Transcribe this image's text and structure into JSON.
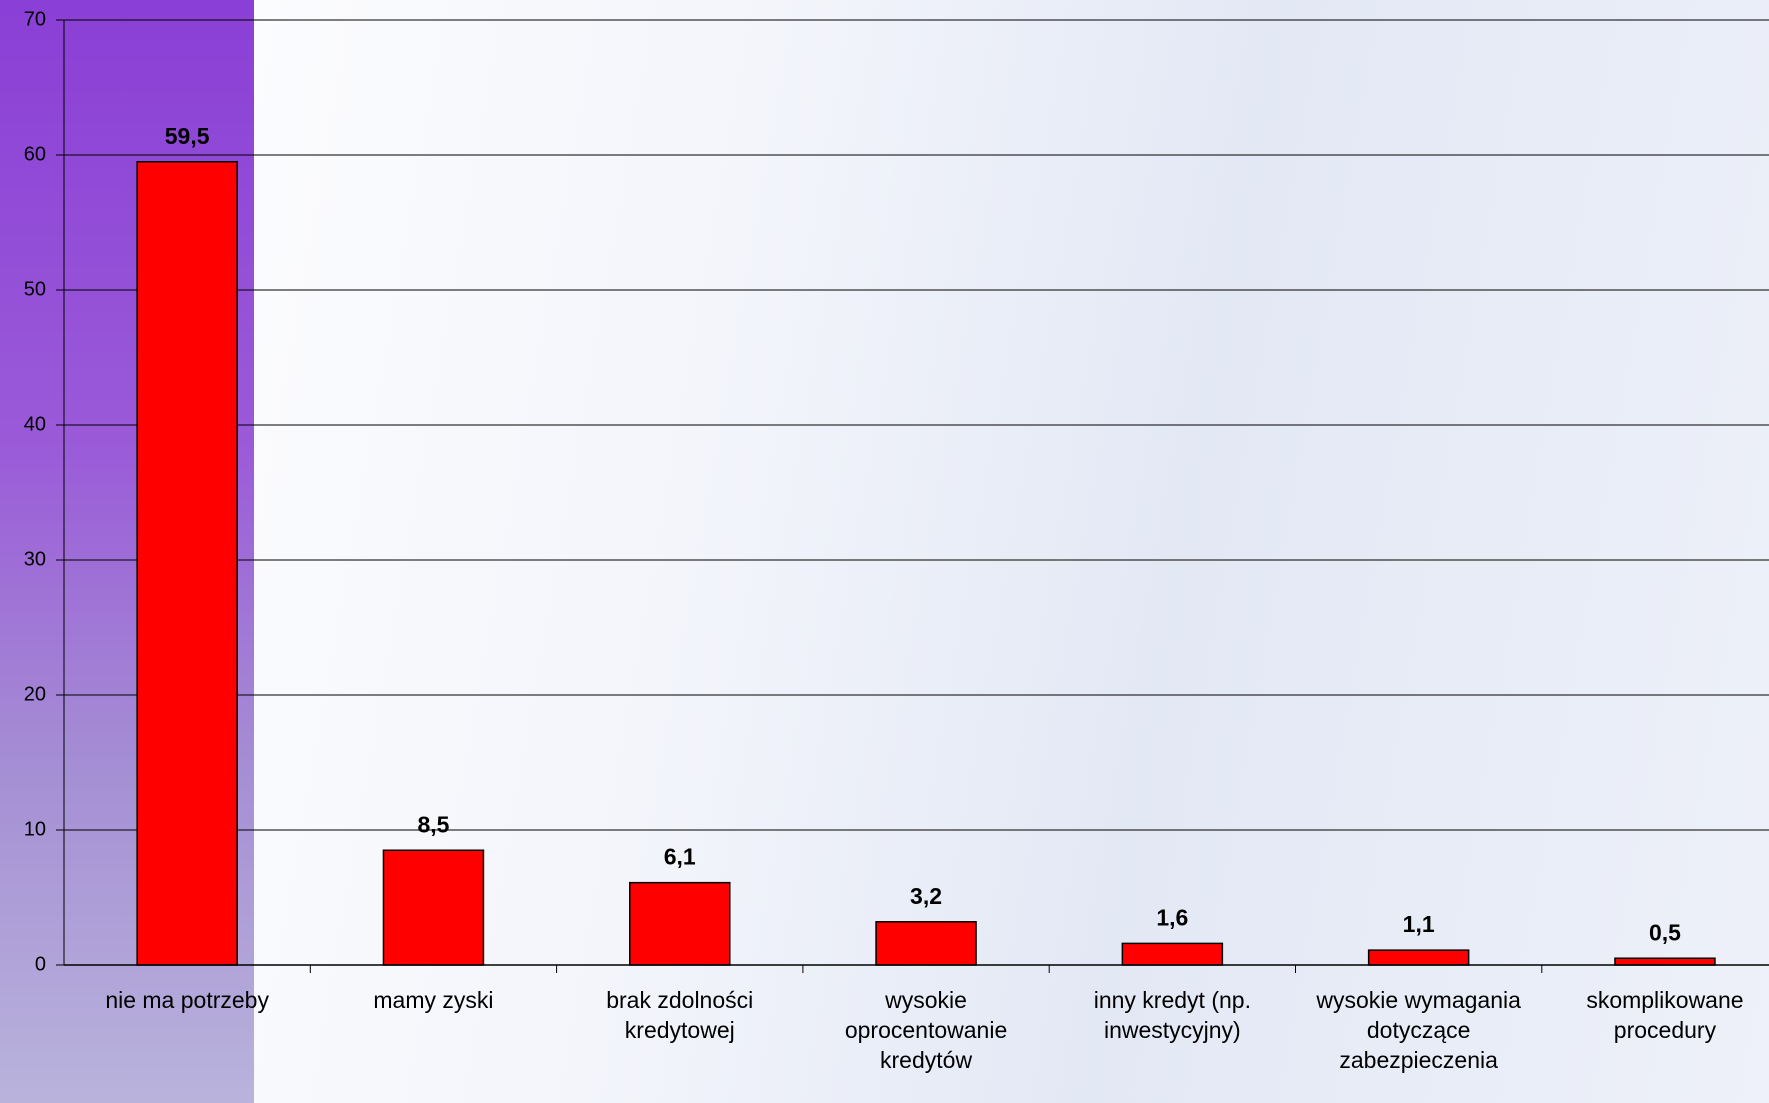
{
  "chart_data": {
    "type": "bar",
    "categories": [
      "nie ma potrzeby",
      "mamy zyski",
      "brak zdolności kredytowej",
      "wysokie oprocentowanie kredytów",
      "inny kredyt (np. inwestycyjny)",
      "wysokie wymagania dotyczące zabezpieczenia",
      "skomplikowane procedury"
    ],
    "values": [
      59.5,
      8.5,
      6.1,
      3.2,
      1.6,
      1.1,
      0.5
    ],
    "value_labels": [
      "59,5",
      "8,5",
      "6,1",
      "3,2",
      "1,6",
      "1,1",
      "0,5"
    ],
    "color": "#ff0000",
    "ylim": [
      0,
      70
    ],
    "yticks": [
      0,
      10,
      20,
      30,
      40,
      50,
      60,
      70
    ],
    "grid": true
  }
}
